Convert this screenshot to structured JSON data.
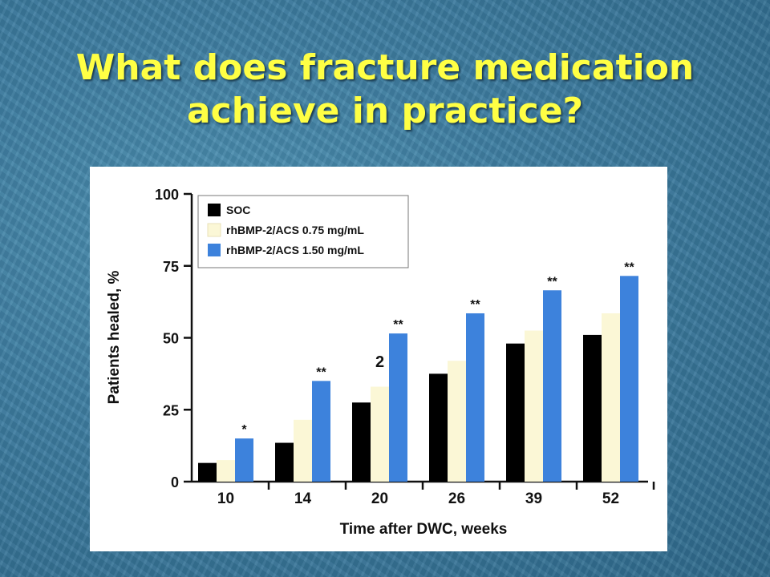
{
  "slide": {
    "title_line1": "What does fracture medication",
    "title_line2": "achieve in practice?"
  },
  "chart_data": {
    "type": "bar",
    "xlabel": "Time after DWC, weeks",
    "ylabel": "Patients healed, %",
    "ylim": [
      0,
      100
    ],
    "yticks": [
      0,
      25,
      50,
      75,
      100
    ],
    "categories": [
      "10",
      "14",
      "20",
      "26",
      "39",
      "52"
    ],
    "series": [
      {
        "name": "SOC",
        "color": "#000000",
        "values": [
          6.5,
          13.5,
          27.5,
          37.5,
          48,
          51
        ]
      },
      {
        "name": "rhBMP-2/ACS 0.75 mg/mL",
        "color": "#fbf7d6",
        "values": [
          7.5,
          21.5,
          33,
          42,
          52.5,
          58.5
        ]
      },
      {
        "name": "rhBMP-2/ACS 1.50 mg/mL",
        "color": "#3d82dc",
        "values": [
          15,
          35,
          51.5,
          58.5,
          66.5,
          71.5
        ]
      }
    ],
    "significance": [
      "*",
      "**",
      "**",
      "**",
      "**",
      "**"
    ],
    "annotations": [
      {
        "text": "2",
        "category": "20"
      }
    ],
    "legend_position": "top-left",
    "grid": false
  }
}
